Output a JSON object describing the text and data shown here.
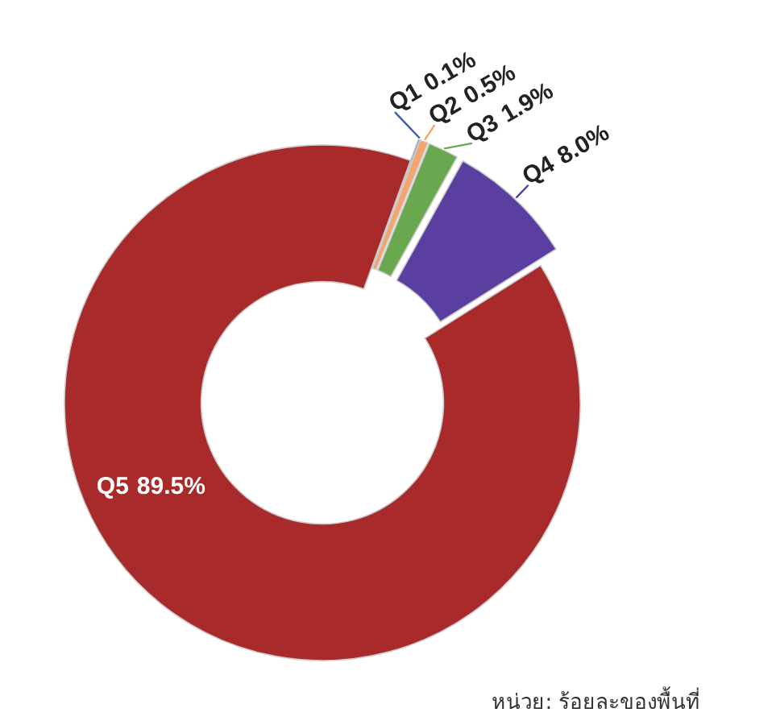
{
  "chart_data": {
    "type": "donut",
    "categories": [
      "Q1",
      "Q2",
      "Q3",
      "Q4",
      "Q5"
    ],
    "values": [
      0.1,
      0.5,
      1.9,
      8.0,
      89.5
    ],
    "colors": [
      "#3a5fb0",
      "#f4a46c",
      "#6aa84f",
      "#5a3ea0",
      "#a82a2a"
    ],
    "value_labels": [
      "0.1%",
      "0.5%",
      "1.9%",
      "8.0%",
      "89.5%"
    ],
    "annotations": [
      "หน่วย: ร้อยละของพื้นที่"
    ]
  }
}
